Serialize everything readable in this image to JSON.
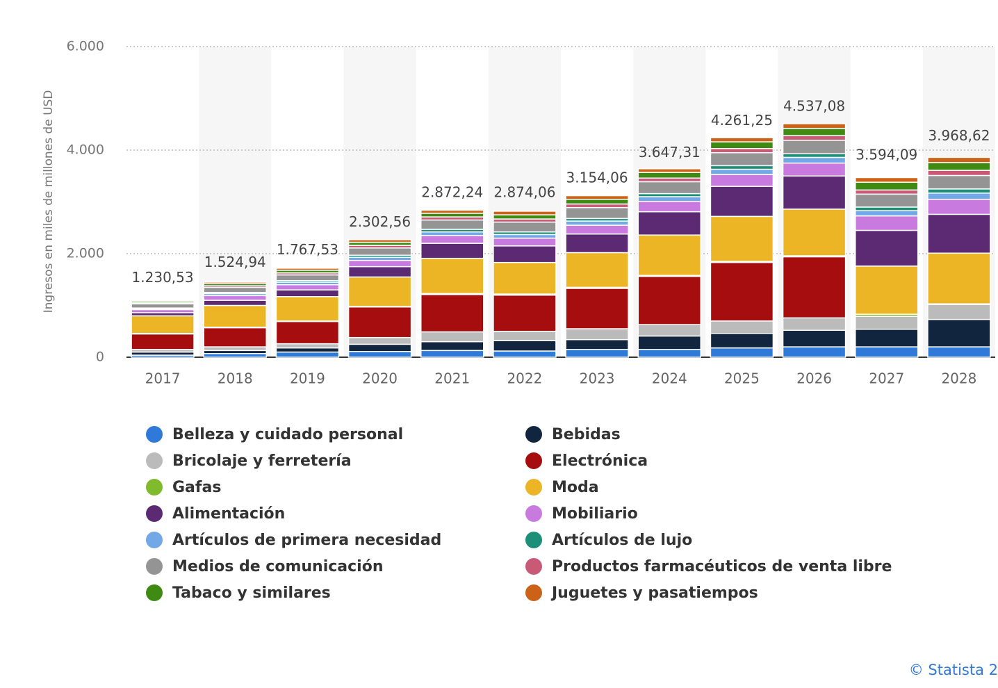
{
  "chart_data": {
    "type": "stacked-bar",
    "y_label": "Ingresos en miles de millones de USD",
    "categories": [
      "2017",
      "2018",
      "2019",
      "2020",
      "2021",
      "2022",
      "2023",
      "2024",
      "2025",
      "2026",
      "2027",
      "2028"
    ],
    "ylim": [
      0,
      6000
    ],
    "yticks": [
      0,
      {
        "value": 2000,
        "label": "2.000"
      },
      {
        "value": 4000,
        "label": "4.000"
      },
      {
        "value": 6000,
        "label": "6.000"
      }
    ],
    "grid": true,
    "series": [
      {
        "name": "Belleza y cuidado personal",
        "color": "#2f7ad8",
        "values": [
          40,
          70,
          100,
          110,
          130,
          120,
          150,
          150,
          180,
          200,
          200,
          200
        ]
      },
      {
        "name": "Bebidas",
        "color": "#12253e",
        "values": [
          60,
          60,
          80,
          140,
          170,
          200,
          190,
          260,
          280,
          320,
          340,
          530
        ]
      },
      {
        "name": "Bricolaje y ferretería",
        "color": "#bbbbbb",
        "values": [
          50,
          70,
          80,
          130,
          190,
          180,
          210,
          220,
          240,
          240,
          250,
          290
        ]
      },
      {
        "name": "Electrónica",
        "color": "#a50d0f",
        "values": [
          300,
          370,
          430,
          590,
          720,
          700,
          780,
          930,
          1130,
          1180,
          0,
          0
        ]
      },
      {
        "name": "Gafas",
        "color": "#7fbb2c",
        "values": [
          10,
          10,
          10,
          10,
          20,
          20,
          20,
          20,
          20,
          20,
          40,
          10
        ]
      },
      {
        "name": "Moda",
        "color": "#ebb525",
        "values": [
          340,
          420,
          470,
          570,
          680,
          610,
          670,
          780,
          870,
          900,
          930,
          980
        ]
      },
      {
        "name": "Alimentación",
        "color": "#5b2a73",
        "values": [
          60,
          100,
          130,
          200,
          290,
          320,
          360,
          450,
          580,
          640,
          690,
          750
        ]
      },
      {
        "name": "Mobiliario",
        "color": "#c87ade",
        "values": [
          60,
          90,
          100,
          120,
          150,
          150,
          170,
          200,
          230,
          250,
          280,
          290
        ]
      },
      {
        "name": "Artículos de primera necesidad",
        "color": "#72a8e6",
        "values": [
          20,
          40,
          50,
          60,
          70,
          70,
          80,
          90,
          100,
          110,
          100,
          120
        ]
      },
      {
        "name": "Artículos de lujo",
        "color": "#1b8f78",
        "values": [
          10,
          20,
          30,
          40,
          50,
          50,
          50,
          60,
          70,
          70,
          70,
          80
        ]
      },
      {
        "name": "Medios de comunicación",
        "color": "#949494",
        "values": [
          80,
          100,
          110,
          140,
          180,
          190,
          210,
          230,
          250,
          260,
          250,
          260
        ]
      },
      {
        "name": "Productos farmacéuticos de venta libre",
        "color": "#c85a78",
        "values": [
          20,
          30,
          40,
          50,
          60,
          60,
          70,
          70,
          80,
          90,
          80,
          100
        ]
      },
      {
        "name": "Tabaco y similares",
        "color": "#3e8a13",
        "values": [
          30,
          40,
          50,
          60,
          70,
          80,
          90,
          110,
          130,
          140,
          150,
          150
        ]
      },
      {
        "name": "Juguetes y pasatiempos",
        "color": "#cc6218",
        "values": [
          20,
          30,
          40,
          50,
          60,
          70,
          70,
          70,
          80,
          90,
          90,
          100
        ]
      }
    ],
    "totals": {
      "values": [
        1230.53,
        1524.94,
        1767.53,
        2302.56,
        2872.24,
        2874.06,
        3154.06,
        3647.31,
        4261.25,
        4537.08,
        3594.09,
        3968.62
      ],
      "value_labels": [
        "1.230,53",
        "1.524,94",
        "1.767,53",
        "2.302,56",
        "2.872,24",
        "2.874,06",
        "3.154,06",
        "3.647,31",
        "4.261,25",
        "4.537,08",
        "3.594,09",
        "3.968,62"
      ]
    },
    "source": "© Statista 2"
  }
}
